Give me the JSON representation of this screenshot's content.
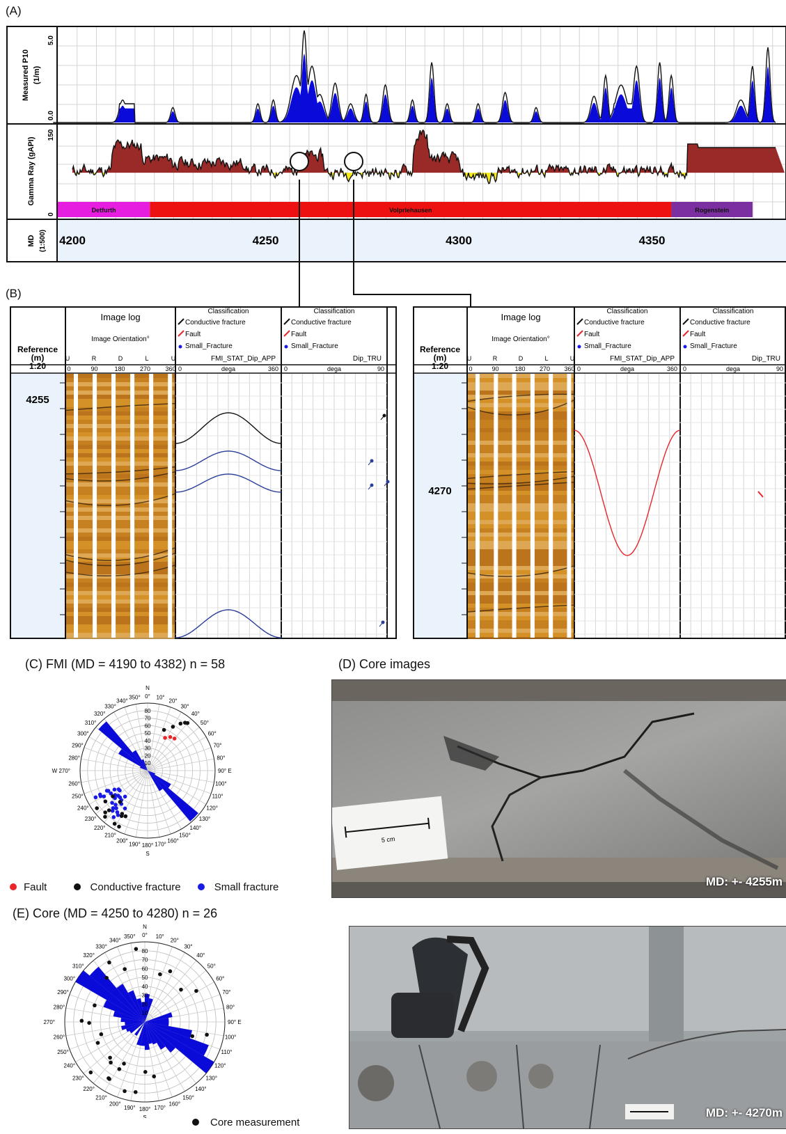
{
  "panel_a": {
    "label": "(A)",
    "p10_track": {
      "title": "Measured P10",
      "unit": "(1/m)",
      "scale_max": "5.0",
      "scale_min": "0.0"
    },
    "gr_track": {
      "title": "Gamma Ray (gAPI)",
      "scale_max": "150",
      "scale_min": "0"
    },
    "formations": [
      {
        "name": "Detfurth",
        "color": "#e51ee0",
        "from_md": 4200,
        "to_md": 4224
      },
      {
        "name": "Volpriehausen",
        "color": "#ee1111",
        "from_md": 4224,
        "to_md": 4359
      },
      {
        "name": "Rogenstein",
        "color": "#7b2fa0",
        "from_md": 4359,
        "to_md": 4380
      }
    ],
    "md_track": {
      "title": "MD",
      "scale": "(1:500)",
      "ticks": [
        "4200",
        "4250",
        "4300",
        "4350"
      ]
    },
    "markers_md": [
      4256,
      4270
    ]
  },
  "panel_b": {
    "label": "(B)",
    "logs": [
      {
        "reference_header": "Reference\n(m)\n1:20",
        "depth_label": "4255",
        "image_col": {
          "title": "Image log",
          "subtitle": "Image Orientation°",
          "orient_letters": [
            "U",
            "R",
            "D",
            "L",
            "U"
          ],
          "scale": [
            "0",
            "90",
            "180",
            "270",
            "360"
          ]
        },
        "class_cols": [
          {
            "classification": "Classification",
            "legend": [
              "Conductive fracture",
              "Fault",
              "Small_Fracture"
            ],
            "curve": "FMI_STAT_Dip_APP",
            "scale": [
              "0",
              "dega",
              "360"
            ]
          },
          {
            "classification": "Classification",
            "legend": [
              "Conductive fracture",
              "Fault",
              "Small_Fracture"
            ],
            "curve": "Dip_TRU",
            "scale": [
              "0",
              "dega",
              "90"
            ]
          }
        ]
      },
      {
        "reference_header": "Reference\n(m)\n1:20",
        "depth_label": "4270",
        "image_col": {
          "title": "Image log",
          "subtitle": "Image Orientation°",
          "orient_letters": [
            "U",
            "R",
            "D",
            "L",
            "U"
          ],
          "scale": [
            "0",
            "90",
            "180",
            "270",
            "360"
          ]
        },
        "class_cols": [
          {
            "classification": "Classification",
            "legend": [
              "Conductive fracture",
              "Fault",
              "Small_Fracture"
            ],
            "curve": "FMI_STAT_Dip_APP",
            "scale": [
              "0",
              "dega",
              "360"
            ]
          },
          {
            "classification": "Classification",
            "legend": [
              "Conductive fracture",
              "Fault",
              "Small_Fracture"
            ],
            "curve": "Dip_TRU",
            "scale": [
              "0",
              "dega",
              "90"
            ]
          }
        ]
      }
    ]
  },
  "panel_c": {
    "title": "(C) FMI (MD = 4190 to 4382)  n = 58",
    "compass": {
      "N": "N",
      "E": "E",
      "S": "S",
      "W": "W"
    },
    "legend": [
      {
        "label": "Fault",
        "color": "#e8262a"
      },
      {
        "label": "Conductive fracture",
        "color": "#111111"
      },
      {
        "label": "Small fracture",
        "color": "#1a1ae6"
      }
    ]
  },
  "panel_d": {
    "title": "(D) Core images",
    "photo1_tag": "MD: +- 4255m",
    "scale_bar_label": "5 cm",
    "photo2_tag": "MD: +- 4270m"
  },
  "panel_e": {
    "title": "(E)  Core (MD = 4250 to 4280)  n = 26",
    "compass": {
      "N": "N",
      "E": "E",
      "S": "S",
      "W": "W"
    },
    "legend": [
      {
        "label": "Core measurement",
        "color": "#111111"
      }
    ]
  },
  "rose_angle_labels": [
    "0°",
    "10°",
    "20°",
    "30°",
    "40°",
    "50°",
    "60°",
    "70°",
    "80°",
    "90°",
    "100°",
    "110°",
    "120°",
    "130°",
    "140°",
    "150°",
    "160°",
    "170°",
    "180°",
    "190°",
    "200°",
    "210°",
    "220°",
    "230°",
    "240°",
    "250°",
    "260°",
    "270°",
    "280°",
    "290°",
    "300°",
    "310°",
    "320°",
    "330°",
    "340°",
    "350°"
  ],
  "rose_radial_labels": [
    "10",
    "20",
    "30",
    "40",
    "50",
    "60",
    "70",
    "80"
  ],
  "colors": {
    "fill_blue": "#0b0bd9",
    "gr_fill": "#9a2a28",
    "gr_low": "#f2ea19",
    "md_bg": "#eaf3fb"
  }
}
